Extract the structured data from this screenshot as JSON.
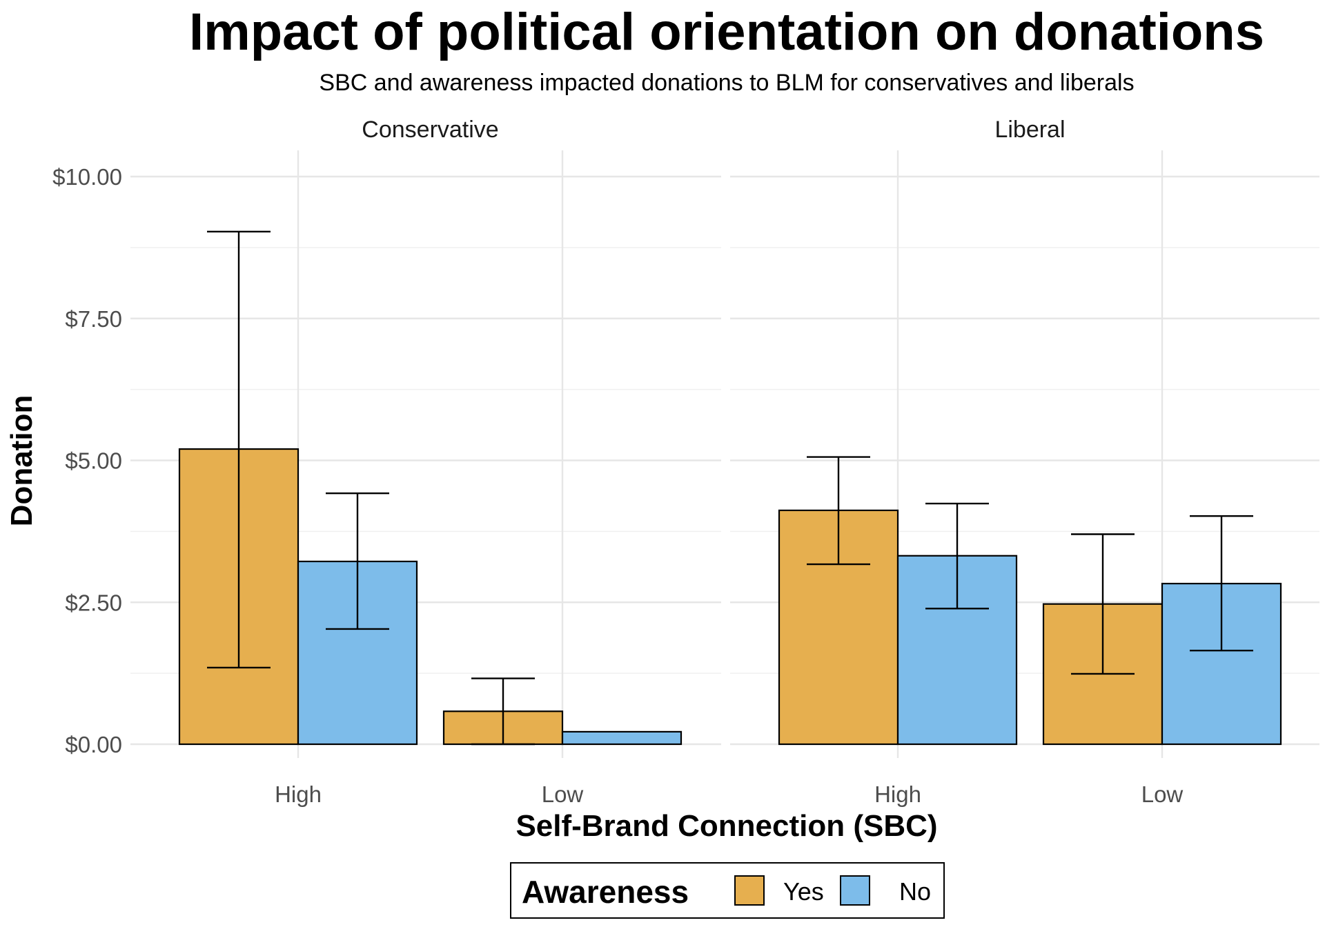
{
  "chart_data": {
    "type": "bar",
    "title": "Impact of political orientation on donations",
    "subtitle": "SBC and awareness impacted donations to BLM for conservatives and liberals",
    "xlabel": "Self-Brand Connection (SBC)",
    "ylabel": "Donation",
    "ylim": [
      0,
      10.5
    ],
    "yticks": [
      "$0.00",
      "$2.50",
      "$5.00",
      "$7.50",
      "$10.00"
    ],
    "ytick_values": [
      0,
      2.5,
      5,
      7.5,
      10
    ],
    "grid": true,
    "categories": [
      "High",
      "Low"
    ],
    "facets": [
      {
        "name": "Conservative",
        "series": [
          {
            "name": "Yes",
            "values": [
              5.2,
              0.58
            ],
            "error_low": [
              1.35,
              0.0
            ],
            "error_high": [
              9.03,
              1.16
            ]
          },
          {
            "name": "No",
            "values": [
              3.22,
              0.22
            ],
            "error_low": [
              2.03,
              null
            ],
            "error_high": [
              4.42,
              null
            ]
          }
        ]
      },
      {
        "name": "Liberal",
        "series": [
          {
            "name": "Yes",
            "values": [
              4.12,
              2.47
            ],
            "error_low": [
              3.17,
              1.24
            ],
            "error_high": [
              5.06,
              3.7
            ]
          },
          {
            "name": "No",
            "values": [
              3.32,
              2.83
            ],
            "error_low": [
              2.39,
              1.65
            ],
            "error_high": [
              4.24,
              4.02
            ]
          }
        ]
      }
    ],
    "legend": {
      "title": "Awareness",
      "position": "bottom",
      "entries": [
        {
          "label": "Yes",
          "color": "#E69F00"
        },
        {
          "label": "No",
          "color": "#56B4E9"
        }
      ]
    },
    "colors": {
      "Yes": "#E6AF4F",
      "No": "#7DBCEA"
    }
  }
}
